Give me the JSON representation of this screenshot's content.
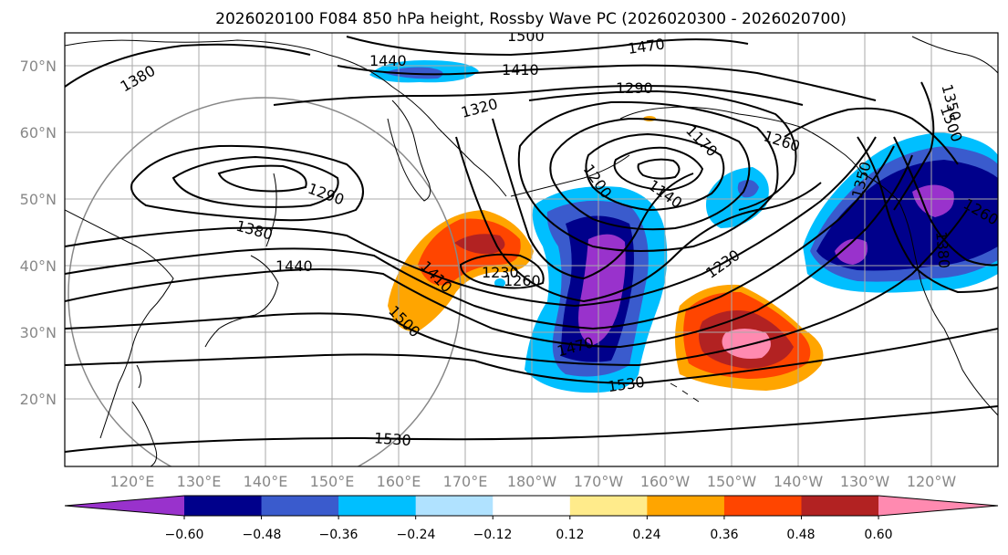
{
  "title": "2026020100 F084 850 hPa height, Rossby Wave PC (2026020300 - 2026020700)",
  "lat_labels": [
    "70°N",
    "60°N",
    "50°N",
    "40°N",
    "30°N",
    "20°N"
  ],
  "lon_labels": [
    "120°E",
    "130°E",
    "140°E",
    "150°E",
    "160°E",
    "170°E",
    "180°W",
    "170°W",
    "160°W",
    "150°W",
    "140°W",
    "130°W",
    "120°W"
  ],
  "contour_labels": [
    "1380",
    "1440",
    "1500",
    "1470",
    "1410",
    "1320",
    "1290",
    "1290",
    "1380",
    "1440",
    "1410",
    "1500",
    "1230",
    "1260",
    "1200",
    "1170",
    "1140",
    "1260",
    "1230",
    "1350",
    "1350",
    "1380",
    "1260",
    "1530",
    "1530",
    "1470",
    "1500"
  ],
  "colorbar": {
    "ticks": [
      "−0.60",
      "−0.48",
      "−0.36",
      "−0.24",
      "−0.12",
      "0.12",
      "0.24",
      "0.36",
      "0.48",
      "0.60"
    ],
    "colors": [
      "#9932cc",
      "#00008b",
      "#3a5bcd",
      "#00bfff",
      "#b0e2ff",
      "#ffffff",
      "#ffeb8b",
      "#ffa500",
      "#ff4500",
      "#b22222",
      "#ff8ab0"
    ]
  },
  "colors": {
    "land_outline": "#000000",
    "grid": "#aaaaaa",
    "contour": "#000000"
  }
}
